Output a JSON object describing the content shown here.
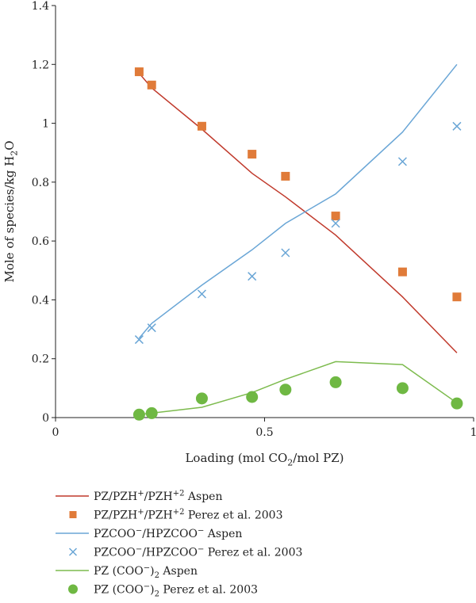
{
  "chart_data": {
    "type": "line",
    "xlabel": {
      "pre": "Loading (mol CO",
      "sub": "2",
      "post": "/mol PZ)"
    },
    "ylabel": {
      "pre": "Mole of species/kg H",
      "sub": "2",
      "post": "O"
    },
    "xlim": [
      0,
      1
    ],
    "ylim": [
      0,
      1.4
    ],
    "xticks": [
      0,
      0.5,
      1
    ],
    "xtick_labels": [
      "0",
      "0.5",
      "1"
    ],
    "yticks": [
      0,
      0.2,
      0.4,
      0.6,
      0.8,
      1.0,
      1.2,
      1.4
    ],
    "ytick_labels": [
      "0",
      "0.2",
      "0.4",
      "0.6",
      "0.8",
      "1",
      "1.2",
      "1.4"
    ],
    "grid": false,
    "legend_position": "below",
    "series": [
      {
        "name": "PZ/PZH⁺/PZH⁺² Aspen",
        "legend": [
          {
            "t": "PZ/PZH"
          },
          {
            "t": "+",
            "s": "sup"
          },
          {
            "t": "/PZH"
          },
          {
            "t": "+2",
            "s": "sup"
          },
          {
            "t": " Aspen"
          }
        ],
        "kind": "line",
        "color": "#c0392b",
        "x": [
          0.2,
          0.23,
          0.35,
          0.47,
          0.55,
          0.67,
          0.83,
          0.96
        ],
        "y": [
          1.17,
          1.12,
          0.98,
          0.83,
          0.75,
          0.62,
          0.41,
          0.22
        ]
      },
      {
        "name": "PZ/PZH⁺/PZH⁺² Perez et al. 2003",
        "legend": [
          {
            "t": "PZ/PZH"
          },
          {
            "t": "+",
            "s": "sup"
          },
          {
            "t": "/PZH"
          },
          {
            "t": "+2",
            "s": "sup"
          },
          {
            "t": " Perez et al. 2003"
          }
        ],
        "kind": "square",
        "color": "#e07b39",
        "x": [
          0.2,
          0.23,
          0.35,
          0.47,
          0.55,
          0.67,
          0.83,
          0.96
        ],
        "y": [
          1.175,
          1.13,
          0.99,
          0.895,
          0.82,
          0.685,
          0.495,
          0.41
        ]
      },
      {
        "name": "PZCOO⁻/HPZCOO⁻ Aspen",
        "legend": [
          {
            "t": "PZCOO"
          },
          {
            "t": "−",
            "s": "sup"
          },
          {
            "t": "/HPZCOO"
          },
          {
            "t": "−",
            "s": "sup"
          },
          {
            "t": " Aspen"
          }
        ],
        "kind": "line",
        "color": "#6aa6d6",
        "x": [
          0.2,
          0.23,
          0.35,
          0.47,
          0.55,
          0.67,
          0.83,
          0.96
        ],
        "y": [
          0.27,
          0.32,
          0.45,
          0.57,
          0.66,
          0.76,
          0.97,
          1.2
        ]
      },
      {
        "name": "PZCOO⁻/HPZCOO⁻ Perez et al. 2003",
        "legend": [
          {
            "t": "PZCOO"
          },
          {
            "t": "−",
            "s": "sup"
          },
          {
            "t": "/HPZCOO"
          },
          {
            "t": "−",
            "s": "sup"
          },
          {
            "t": " Perez et al. 2003"
          }
        ],
        "kind": "cross",
        "color": "#6aa6d6",
        "x": [
          0.2,
          0.23,
          0.35,
          0.47,
          0.55,
          0.67,
          0.83,
          0.96
        ],
        "y": [
          0.265,
          0.305,
          0.42,
          0.48,
          0.56,
          0.66,
          0.87,
          0.99
        ]
      },
      {
        "name": "PZ (COO⁻)₂ Aspen",
        "legend": [
          {
            "t": "PZ (COO"
          },
          {
            "t": "−",
            "s": "sup"
          },
          {
            "t": ")"
          },
          {
            "t": "2",
            "s": "sub"
          },
          {
            "t": " Aspen"
          }
        ],
        "kind": "line",
        "color": "#7dbb4e",
        "x": [
          0.2,
          0.23,
          0.35,
          0.47,
          0.55,
          0.67,
          0.83,
          0.96
        ],
        "y": [
          0.01,
          0.015,
          0.035,
          0.085,
          0.13,
          0.19,
          0.18,
          0.05
        ]
      },
      {
        "name": "PZ (COO⁻)₂ Perez et al. 2003",
        "legend": [
          {
            "t": "PZ (COO"
          },
          {
            "t": "−",
            "s": "sup"
          },
          {
            "t": ")"
          },
          {
            "t": "2",
            "s": "sub"
          },
          {
            "t": " Perez et al. 2003"
          }
        ],
        "kind": "circle",
        "color": "#6fb843",
        "x": [
          0.2,
          0.23,
          0.35,
          0.47,
          0.55,
          0.67,
          0.83,
          0.96
        ],
        "y": [
          0.01,
          0.015,
          0.065,
          0.07,
          0.095,
          0.12,
          0.1,
          0.048
        ]
      }
    ]
  }
}
